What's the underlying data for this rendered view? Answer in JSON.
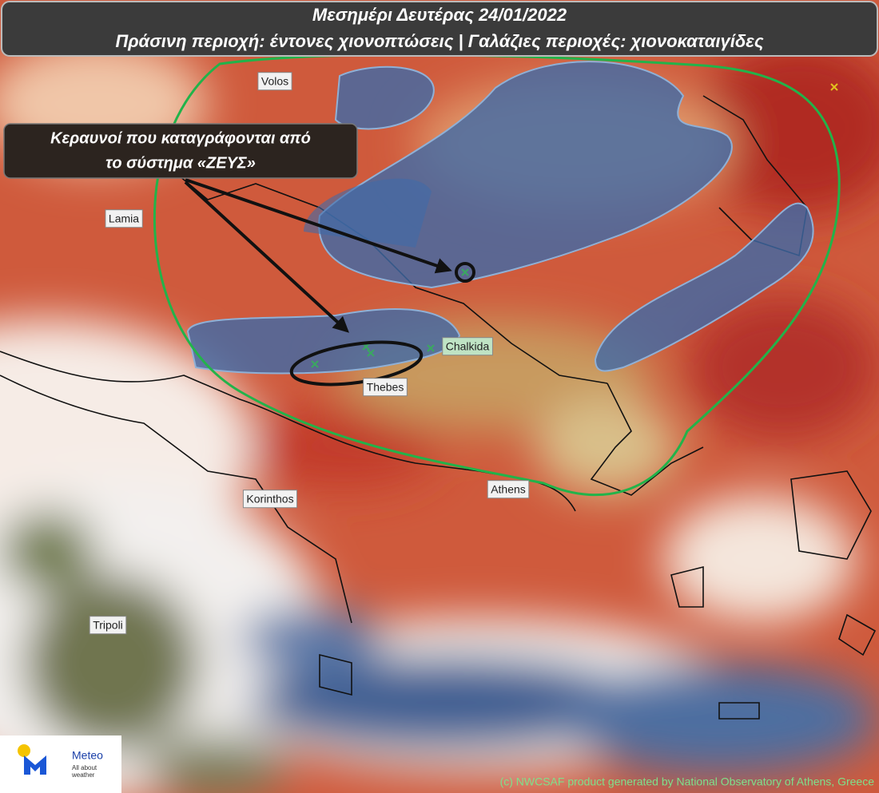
{
  "header": {
    "title_lines": [
      "Μεσημέρι Δευτέρας 24/01/2022",
      "Πράσινη περιοχή: έντονες χιονοπτώσεις | Γαλάζιες περιοχές: χιονοκαταιγίδες"
    ]
  },
  "annotation": {
    "lines": [
      "Κεραυνοί που καταγράφονται από",
      "το σύστημα «ΖΕΥΣ»"
    ]
  },
  "cities": [
    "Volos",
    "Lamia",
    "Chalkida",
    "Thebes",
    "Korinthos",
    "Athens",
    "Tripoli"
  ],
  "logo": {
    "name": "Meteo",
    "tagline_lines": [
      "All about",
      "weather"
    ]
  },
  "credit": "(c) NWCSAF product generated by National Observatory of Athens, Greece"
}
